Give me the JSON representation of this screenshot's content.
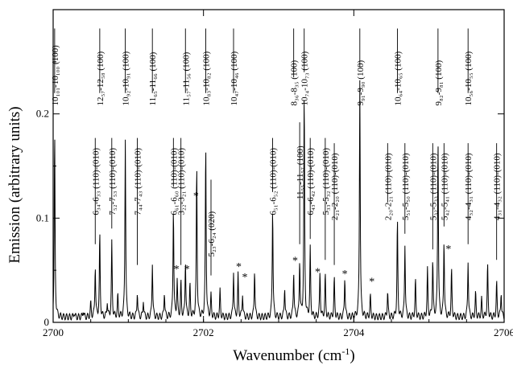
{
  "chart_data": {
    "type": "line",
    "xlabel": "Wavenumber (cm",
    "xlabel_sup": "-1",
    "xlabel_close": ")",
    "ylabel": "Emission (arbitrary units)",
    "xlim": [
      2700,
      2706
    ],
    "ylim": [
      0,
      0.3
    ],
    "x_ticks": [
      "2700",
      "2702",
      "2704",
      "2706"
    ],
    "y_ticks": [
      "0",
      "0.1",
      "0.2"
    ],
    "grid": false,
    "baseline": 0.005,
    "peaks": [
      [
        2700.02,
        0.182
      ],
      [
        2700.28,
        0.01
      ],
      [
        2700.4,
        0.012
      ],
      [
        2700.5,
        0.018
      ],
      [
        2700.56,
        0.055
      ],
      [
        2700.62,
        0.085
      ],
      [
        2700.72,
        0.02
      ],
      [
        2700.78,
        0.076
      ],
      [
        2700.86,
        0.025
      ],
      [
        2700.96,
        0.178
      ],
      [
        2701.12,
        0.03
      ],
      [
        2701.2,
        0.022
      ],
      [
        2701.32,
        0.058
      ],
      [
        2701.48,
        0.03
      ],
      [
        2701.6,
        0.112
      ],
      [
        2701.65,
        0.04
      ],
      [
        2701.7,
        0.038
      ],
      [
        2701.76,
        0.06
      ],
      [
        2701.82,
        0.035
      ],
      [
        2701.91,
        0.153
      ],
      [
        2702.03,
        0.172
      ],
      [
        2702.1,
        0.025
      ],
      [
        2702.22,
        0.03
      ],
      [
        2702.4,
        0.05
      ],
      [
        2702.46,
        0.045
      ],
      [
        2702.52,
        0.028
      ],
      [
        2702.68,
        0.052
      ],
      [
        2702.92,
        0.112
      ],
      [
        2703.08,
        0.035
      ],
      [
        2703.2,
        0.05
      ],
      [
        2703.28,
        0.06
      ],
      [
        2703.34,
        0.22
      ],
      [
        2703.42,
        0.07
      ],
      [
        2703.55,
        0.048
      ],
      [
        2703.62,
        0.045
      ],
      [
        2703.74,
        0.042
      ],
      [
        2703.88,
        0.045
      ],
      [
        2704.08,
        0.235
      ],
      [
        2704.22,
        0.025
      ],
      [
        2704.45,
        0.03
      ],
      [
        2704.58,
        0.098
      ],
      [
        2704.68,
        0.076
      ],
      [
        2704.82,
        0.04
      ],
      [
        2704.98,
        0.05
      ],
      [
        2705.05,
        0.06
      ],
      [
        2705.12,
        0.18
      ],
      [
        2705.2,
        0.08
      ],
      [
        2705.3,
        0.05
      ],
      [
        2705.52,
        0.06
      ],
      [
        2705.62,
        0.028
      ],
      [
        2705.7,
        0.022
      ],
      [
        2705.78,
        0.055
      ],
      [
        2705.9,
        0.038
      ],
      [
        2705.96,
        0.03
      ]
    ],
    "annotations": [
      {
        "text": "10₁₀₁-10₁₀₀ (100)",
        "x": 2700.02,
        "y": 0.285,
        "lx": 2700.02,
        "ly": 0.22
      },
      {
        "text": "12₅₇-12₅₈ (100)",
        "x": 2700.62,
        "y": 0.285,
        "lx": 2700.62,
        "ly": 0.22
      },
      {
        "text": "10₉₂-10₉₁ (100)",
        "x": 2700.96,
        "y": 0.285,
        "lx": 2700.96,
        "ly": 0.22
      },
      {
        "text": "11₆₅-11₆₆ (100)",
        "x": 2701.32,
        "y": 0.285,
        "lx": 2701.32,
        "ly": 0.22
      },
      {
        "text": "11₅₇-11₅₆ (100)",
        "x": 2701.76,
        "y": 0.285,
        "lx": 2701.76,
        "ly": 0.22
      },
      {
        "text": "10₈₃-10₈₂ (100)",
        "x": 2702.03,
        "y": 0.285,
        "lx": 2702.03,
        "ly": 0.22
      },
      {
        "text": "10₄₇-10₄₆ (100)",
        "x": 2702.4,
        "y": 0.285,
        "lx": 2702.4,
        "ly": 0.22
      },
      {
        "text": "8₃₆-8₃₅ (100)",
        "x": 2703.2,
        "y": 0.285,
        "lx": 2703.2,
        "ly": 0.235
      },
      {
        "text": "10₇₄-10₇₃ (100)",
        "x": 2703.34,
        "y": 0.285,
        "lx": 2703.34,
        "ly": 0.24
      },
      {
        "text": "9₉₁-9₉₀ (100)",
        "x": 2704.08,
        "y": 0.285,
        "lx": 2704.08,
        "ly": 0.245
      },
      {
        "text": "10₆₄-10₆₅ (100)",
        "x": 2704.58,
        "y": 0.285,
        "lx": 2704.58,
        "ly": 0.22
      },
      {
        "text": "9₈₂-9₈₁ (100)",
        "x": 2705.12,
        "y": 0.285,
        "lx": 2705.12,
        "ly": 0.22
      },
      {
        "text": "10₅₆-10₅₅ (100)",
        "x": 2705.52,
        "y": 0.285,
        "lx": 2705.52,
        "ly": 0.22
      },
      {
        "text": "6₃₄-6₃₃ (110)-(010)",
        "x": 2700.56,
        "y": 0.18,
        "lx": 2700.56,
        "ly": 0.075
      },
      {
        "text": "7₅₂-7₅₃ (110)-(010)",
        "x": 2700.78,
        "y": 0.18,
        "lx": 2700.78,
        "ly": 0.09
      },
      {
        "text": "7₄₄-7₄₃ (110)-(010)",
        "x": 2701.12,
        "y": 0.18,
        "lx": 2701.12,
        "ly": 0.055
      },
      {
        "text": "6₆₁-6₆₀ (110)-(010)",
        "x": 2701.6,
        "y": 0.18,
        "lx": 2701.6,
        "ly": 0.13
      },
      {
        "text": "3₂₂-3₂₁ (110)-(010)",
        "x": 2701.7,
        "y": 0.18,
        "lx": 2701.7,
        "ly": 0.055
      },
      {
        "text": "5₂₃-6₂₄ (020)",
        "x": 2702.1,
        "y": 0.14,
        "lx": 2702.1,
        "ly": 0.045
      },
      {
        "text": "6₅₁-6₅₂ (110)-(010)",
        "x": 2702.92,
        "y": 0.18,
        "lx": 2702.92,
        "ly": 0.125
      },
      {
        "text": "11₅₅-11₅₇ (100)",
        "x": 2703.28,
        "y": 0.195,
        "lx": 2703.28,
        "ly": 0.075
      },
      {
        "text": "6₄₃-6₄₂ (110)-(010)",
        "x": 2703.42,
        "y": 0.18,
        "lx": 2703.42,
        "ly": 0.08
      },
      {
        "text": "5₃₃-5₃₂ (110)-(010)",
        "x": 2703.62,
        "y": 0.18,
        "lx": 2703.62,
        "ly": 0.06
      },
      {
        "text": "2₂₁-2₂₀ (110)-(010)",
        "x": 2703.74,
        "y": 0.175,
        "lx": 2703.74,
        "ly": 0.055
      },
      {
        "text": "2₂₀-2₂₁ (110)-(010)",
        "x": 2704.45,
        "y": 0.175,
        "lx": 2704.45,
        "ly": 0.115
      },
      {
        "text": "5₅₁-5₅₀ (110)-(010)",
        "x": 2704.68,
        "y": 0.175,
        "lx": 2704.68,
        "ly": 0.085
      },
      {
        "text": "5₃₂-5₃₃ (110)-(010)",
        "x": 2705.05,
        "y": 0.175,
        "lx": 2705.05,
        "ly": 0.07
      },
      {
        "text": "5₄₂-5₄₁ (110)-(010)",
        "x": 2705.2,
        "y": 0.175,
        "lx": 2705.2,
        "ly": 0.092
      },
      {
        "text": "4₃₂-4₃₁ (110)-(010)",
        "x": 2705.52,
        "y": 0.175,
        "lx": 2705.52,
        "ly": 0.075
      },
      {
        "text": "4₃₁-4₃₂ (110)-(010)",
        "x": 2705.9,
        "y": 0.175,
        "lx": 2705.9,
        "ly": 0.06
      }
    ],
    "stars": [
      {
        "x": 2701.64,
        "y": 0.048
      },
      {
        "x": 2701.78,
        "y": 0.048
      },
      {
        "x": 2701.9,
        "y": 0.118
      },
      {
        "x": 2702.47,
        "y": 0.05
      },
      {
        "x": 2702.55,
        "y": 0.04
      },
      {
        "x": 2703.22,
        "y": 0.056
      },
      {
        "x": 2703.52,
        "y": 0.045
      },
      {
        "x": 2703.88,
        "y": 0.043
      },
      {
        "x": 2704.24,
        "y": 0.036
      },
      {
        "x": 2705.26,
        "y": 0.067
      }
    ]
  }
}
